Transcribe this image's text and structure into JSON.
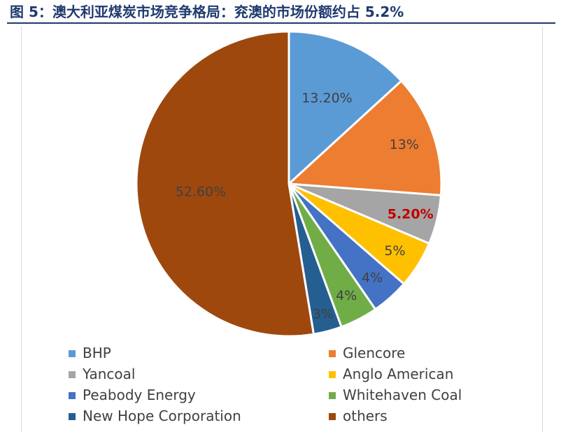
{
  "caption": "图 5：澳大利亚煤炭市场竞争格局：兖澳的市场份额约占 5.2%",
  "colors": {
    "BHP": "#5b9bd5",
    "Glencore": "#ed7d31",
    "Yancoal": "#a5a5a5",
    "Anglo American": "#ffc000",
    "Peabody Energy": "#4472c4",
    "Whitehaven Coal": "#70ad47",
    "New Hope Corporation": "#255e91",
    "others": "#9e480e",
    "highlight_label": "#c00000"
  },
  "chart_data": {
    "type": "pie",
    "title": "",
    "legend": "bottom",
    "categories": [
      "BHP",
      "Glencore",
      "Yancoal",
      "Anglo American",
      "Peabody Energy",
      "Whitehaven Coal",
      "New Hope Corporation",
      "others"
    ],
    "values": [
      13.2,
      13,
      5.2,
      5,
      4,
      4,
      3,
      52.6
    ],
    "data_labels": [
      "13.20%",
      "13%",
      "5.20%",
      "5%",
      "4%",
      "4%",
      "3%",
      "52.60%"
    ]
  }
}
